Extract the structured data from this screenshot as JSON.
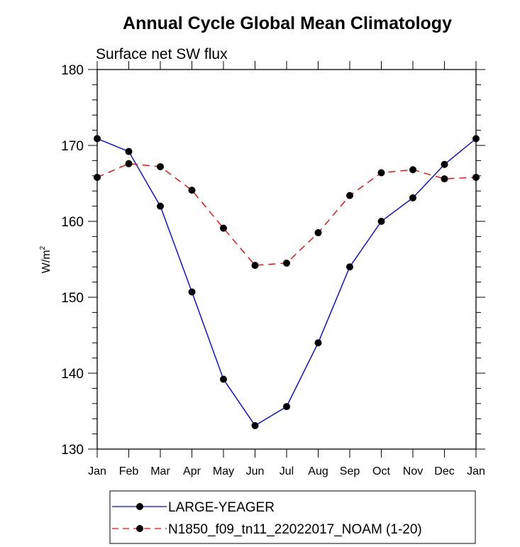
{
  "chart_data": {
    "type": "line",
    "title": "Annual Cycle Global Mean Climatology",
    "subtitle": "Surface net SW flux",
    "xlabel": "",
    "ylabel": "W/m",
    "ylabel_superscript": "2",
    "categories": [
      "Jan",
      "Feb",
      "Mar",
      "Apr",
      "May",
      "Jun",
      "Jul",
      "Aug",
      "Sep",
      "Oct",
      "Nov",
      "Dec",
      "Jan"
    ],
    "ylim": [
      130,
      180
    ],
    "yticks": [
      130,
      140,
      150,
      160,
      170,
      180
    ],
    "yminor_step": 2,
    "grid": false,
    "legend_position": "bottom",
    "series": [
      {
        "name": "LARGE-YEAGER",
        "color": "#0000ff",
        "dash": "solid",
        "marker": "filled-circle",
        "values": [
          170.9,
          169.2,
          162.0,
          150.7,
          139.2,
          133.1,
          135.6,
          144.0,
          154.0,
          160.0,
          163.1,
          167.5,
          170.9
        ]
      },
      {
        "name": "N1850_f09_tn11_22022017_NOAM (1-20)",
        "color": "#ff0000",
        "dash": "dashed",
        "marker": "filled-circle",
        "values": [
          165.8,
          167.6,
          167.2,
          164.1,
          159.1,
          154.2,
          154.5,
          158.5,
          163.4,
          166.4,
          166.8,
          165.6,
          165.8
        ]
      }
    ]
  }
}
